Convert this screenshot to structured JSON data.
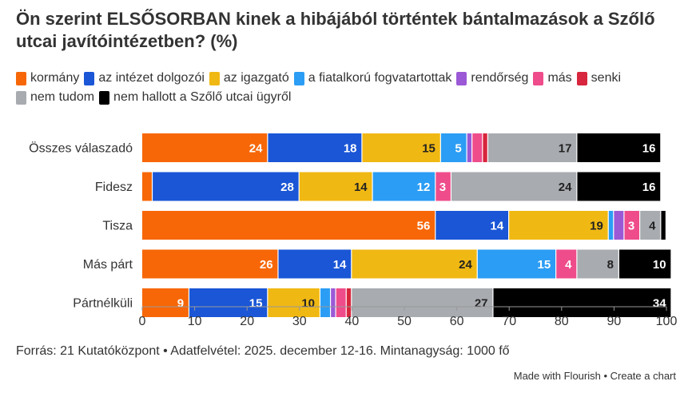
{
  "title": "Ön szerint ELSŐSORBAN kinek a hibájából történtek bántalmazások a Szőlő utcai javítóintézetben? (%)",
  "footer": "Forrás: 21 Kutatóközpont • Adatfelvétel: 2025. december 12-16. Mintanagyság: 1000 fő",
  "credit": "Made with Flourish • Create a chart",
  "chart_data": {
    "type": "bar",
    "orientation": "horizontal",
    "stacked": true,
    "title": "Ön szerint ELSŐSORBAN kinek a hibájából történtek bántalmazások a Szőlő utcai javítóintézetben? (%)",
    "categories": [
      "Összes válaszadó",
      "Fidesz",
      "Tisza",
      "Más párt",
      "Pártnélküli"
    ],
    "xlim": [
      0,
      100
    ],
    "xticks": [
      0,
      10,
      20,
      30,
      40,
      50,
      60,
      70,
      80,
      90,
      100
    ],
    "legend_position": "top",
    "series": [
      {
        "name": "kormány",
        "color": "#f76707",
        "label_color": "#ffffff",
        "values": [
          24,
          2,
          56,
          26,
          9
        ]
      },
      {
        "name": "az intézet dolgozói",
        "color": "#1a56d6",
        "label_color": "#ffffff",
        "values": [
          18,
          28,
          14,
          14,
          15
        ]
      },
      {
        "name": "az igazgató",
        "color": "#f0b813",
        "label_color": "#222222",
        "values": [
          15,
          14,
          19,
          24,
          10
        ]
      },
      {
        "name": "a fiatalkorú fogvatartottak",
        "color": "#2b9df4",
        "label_color": "#ffffff",
        "values": [
          5,
          12,
          1,
          15,
          2
        ]
      },
      {
        "name": "rendőrség",
        "color": "#9b59d6",
        "label_color": "#ffffff",
        "values": [
          1,
          0,
          2,
          0,
          1
        ]
      },
      {
        "name": "más",
        "color": "#ef4c8b",
        "label_color": "#ffffff",
        "values": [
          2,
          3,
          3,
          4,
          2
        ]
      },
      {
        "name": "senki",
        "color": "#d7263d",
        "label_color": "#ffffff",
        "values": [
          1,
          0,
          0,
          0,
          1
        ]
      },
      {
        "name": "nem tudom",
        "color": "#a8abb0",
        "label_color": "#222222",
        "values": [
          17,
          24,
          4,
          8,
          27
        ]
      },
      {
        "name": "nem hallott a Szőlő utcai ügyről",
        "color": "#000000",
        "label_color": "#ffffff",
        "values": [
          16,
          16,
          1,
          10,
          34
        ]
      }
    ],
    "data_labels": [
      [
        "24",
        "18",
        "15",
        "5",
        "",
        "",
        "",
        "17",
        "16"
      ],
      [
        "",
        "28",
        "14",
        "12",
        "",
        "3",
        "",
        "24",
        "16"
      ],
      [
        "56",
        "14",
        "19",
        "",
        "",
        "3",
        "",
        "4",
        ""
      ],
      [
        "26",
        "14",
        "24",
        "15",
        "",
        "4",
        "",
        "8",
        "10"
      ],
      [
        "9",
        "15",
        "10",
        "",
        "",
        "",
        "",
        "27",
        "34"
      ]
    ]
  }
}
